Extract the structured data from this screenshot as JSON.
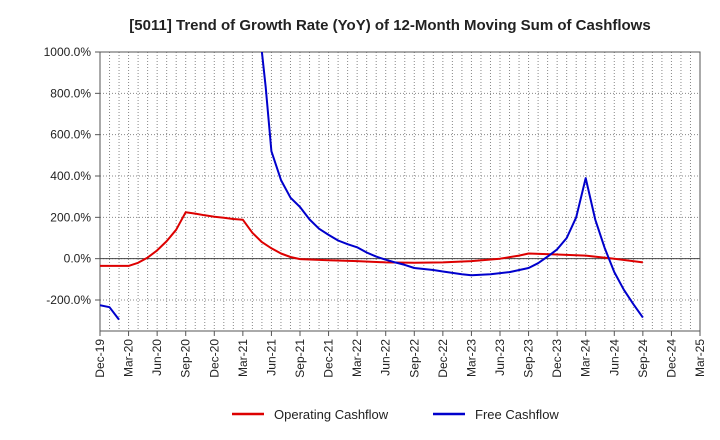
{
  "chart_data": {
    "type": "line",
    "title": "[5011]  Trend of Growth Rate (YoY) of 12-Month Moving Sum of Cashflows",
    "xlabel": "",
    "ylabel": "",
    "ylim": [
      -350,
      1000
    ],
    "yticks": [
      1000,
      800,
      600,
      400,
      200,
      0,
      -200
    ],
    "ytick_labels": [
      "1000.0%",
      "800.0%",
      "600.0%",
      "400.0%",
      "200.0%",
      "0.0%",
      "-200.0%"
    ],
    "x_tick_labels": [
      "Dec-19",
      "Mar-20",
      "Jun-20",
      "Sep-20",
      "Dec-20",
      "Mar-21",
      "Jun-21",
      "Sep-21",
      "Dec-21",
      "Mar-22",
      "Jun-22",
      "Sep-22",
      "Dec-22",
      "Mar-23",
      "Jun-23",
      "Sep-23",
      "Dec-23",
      "Mar-24",
      "Jun-24",
      "Sep-24",
      "Dec-24",
      "Mar-25"
    ],
    "x_tick_months": [
      0,
      3,
      6,
      9,
      12,
      15,
      18,
      21,
      24,
      27,
      30,
      33,
      36,
      39,
      42,
      45,
      48,
      51,
      54,
      57,
      60,
      63
    ],
    "grid": true,
    "legend_position": "bottom",
    "series": [
      {
        "name": "Operating Cashflow",
        "color": "#dd0000",
        "points": [
          [
            0,
            -35
          ],
          [
            3,
            -35
          ],
          [
            4,
            -20
          ],
          [
            5,
            5
          ],
          [
            6,
            40
          ],
          [
            7,
            85
          ],
          [
            8,
            140
          ],
          [
            9,
            225
          ],
          [
            10,
            218
          ],
          [
            11,
            210
          ],
          [
            12,
            203
          ],
          [
            13,
            198
          ],
          [
            14,
            192
          ],
          [
            15,
            188
          ],
          [
            16,
            125
          ],
          [
            17,
            80
          ],
          [
            18,
            50
          ],
          [
            19,
            25
          ],
          [
            20,
            8
          ],
          [
            21,
            -2
          ],
          [
            24,
            -8
          ],
          [
            27,
            -12
          ],
          [
            30,
            -18
          ],
          [
            33,
            -20
          ],
          [
            36,
            -18
          ],
          [
            39,
            -12
          ],
          [
            42,
            0
          ],
          [
            44,
            15
          ],
          [
            45,
            25
          ],
          [
            48,
            20
          ],
          [
            51,
            15
          ],
          [
            54,
            0
          ],
          [
            57,
            -18
          ]
        ]
      },
      {
        "name": "Free Cashflow",
        "color": "#0000cc",
        "points": [
          [
            0,
            -225
          ],
          [
            1,
            -235
          ],
          [
            2,
            -295
          ],
          [
            null,
            null
          ],
          [
            17,
            1000
          ],
          [
            17.4,
            830
          ],
          [
            18,
            520
          ],
          [
            19,
            380
          ],
          [
            20,
            295
          ],
          [
            21,
            250
          ],
          [
            22,
            190
          ],
          [
            23,
            145
          ],
          [
            24,
            115
          ],
          [
            25,
            88
          ],
          [
            26,
            70
          ],
          [
            27,
            55
          ],
          [
            28,
            30
          ],
          [
            29,
            10
          ],
          [
            30,
            -5
          ],
          [
            31,
            -18
          ],
          [
            32,
            -30
          ],
          [
            33,
            -45
          ],
          [
            35,
            -55
          ],
          [
            36,
            -62
          ],
          [
            38,
            -75
          ],
          [
            39,
            -80
          ],
          [
            41,
            -75
          ],
          [
            43,
            -65
          ],
          [
            45,
            -45
          ],
          [
            46,
            -22
          ],
          [
            47,
            10
          ],
          [
            48,
            45
          ],
          [
            49,
            100
          ],
          [
            50,
            200
          ],
          [
            51,
            390
          ],
          [
            52,
            190
          ],
          [
            53,
            50
          ],
          [
            54,
            -65
          ],
          [
            55,
            -150
          ],
          [
            56,
            -220
          ],
          [
            57,
            -285
          ]
        ]
      }
    ]
  }
}
